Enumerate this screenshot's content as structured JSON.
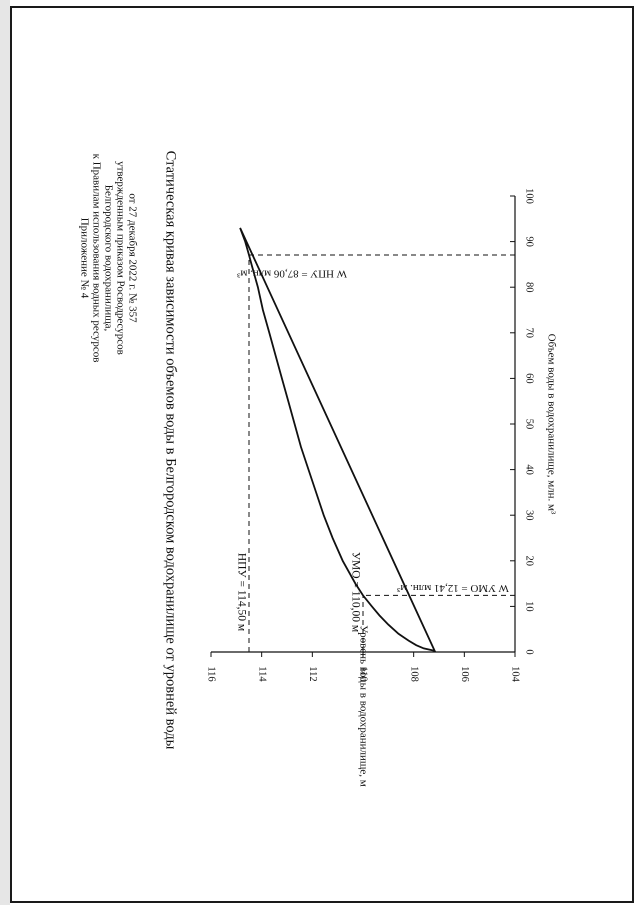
{
  "appendix": {
    "lines": [
      "Приложение № 4",
      "к Правилам использования водных ресурсов",
      "Белгородского водохранилища,",
      "утвержденным приказом Росводресурсов",
      "от 27 декабря 2022 г. № 357"
    ]
  },
  "colors": {
    "ink": "#111111",
    "page": "#ffffff",
    "border": "#1a1a1a"
  },
  "chart_data": {
    "type": "line",
    "title": "Статическая кривая зависимости объемов воды в Белгородском водохранилище от уровней воды",
    "xlabel": "Объем воды в водохранилище, млн. м³",
    "ylabel": "Уровень воды в водохранилище, м",
    "xlim": [
      0,
      100
    ],
    "ylim": [
      104,
      116
    ],
    "x_ticks": [
      "0",
      "10",
      "20",
      "30",
      "40",
      "50",
      "60",
      "70",
      "80",
      "90",
      "100"
    ],
    "y_ticks": [
      "104",
      "106",
      "108",
      "110",
      "112",
      "114",
      "116"
    ],
    "orientation": "rotated 90° clockwise on the page",
    "grid": false,
    "series": [
      {
        "x": [
          0.3,
          0.8,
          1.5,
          2.5,
          4,
          6,
          8,
          10,
          12.41,
          15,
          20,
          25,
          30,
          35,
          40,
          45,
          50,
          55,
          60,
          65,
          70,
          75,
          80,
          85,
          87.06,
          90,
          93
        ],
        "y": [
          107.2,
          107.6,
          107.9,
          108.2,
          108.6,
          109.0,
          109.35,
          109.65,
          110.0,
          110.3,
          110.8,
          111.2,
          111.55,
          111.85,
          112.15,
          112.45,
          112.7,
          112.95,
          113.2,
          113.45,
          113.7,
          113.95,
          114.15,
          114.4,
          114.5,
          114.65,
          114.85
        ]
      }
    ],
    "annotations": {
      "npu_level": "НПУ = 114,50 м",
      "umo_level": "УМО = 110,00 м",
      "w_npu": "W НПУ = 87,06 млн. м³",
      "w_umo": "W УМО = 12,41 млн. м³"
    },
    "reference_points": [
      {
        "x": 87.06,
        "y": 114.5
      },
      {
        "x": 12.41,
        "y": 110.0
      }
    ]
  }
}
